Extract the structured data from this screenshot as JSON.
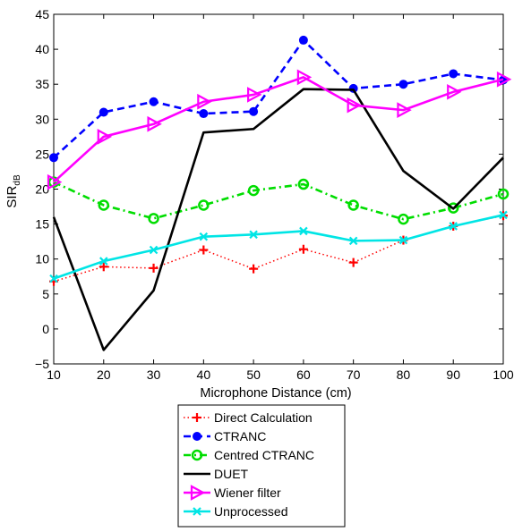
{
  "chart_data": {
    "type": "line",
    "title": "",
    "xlabel": "Microphone Distance (cm)",
    "ylabel": {
      "main": "SIR",
      "sub": "dB"
    },
    "x": [
      10,
      20,
      30,
      40,
      50,
      60,
      70,
      80,
      90,
      100
    ],
    "xlim": [
      10,
      100
    ],
    "ylim": [
      -5,
      45
    ],
    "xticks": [
      "10",
      "20",
      "30",
      "40",
      "50",
      "60",
      "70",
      "80",
      "90",
      "100"
    ],
    "yticks": [
      "−5",
      "0",
      "5",
      "10",
      "15",
      "20",
      "25",
      "30",
      "35",
      "40",
      "45"
    ],
    "grid": false,
    "legend_position": "below plot",
    "series": [
      {
        "name": "Direct Calculation",
        "color": "#ff0000",
        "line_style": "dotted",
        "marker": "plus",
        "values": [
          6.8,
          8.9,
          8.7,
          11.3,
          8.6,
          11.4,
          9.5,
          12.7,
          14.7,
          16.2
        ]
      },
      {
        "name": "CTRANC",
        "color": "#0000ff",
        "line_style": "dashed",
        "marker": "filled-circle",
        "values": [
          24.5,
          31.0,
          32.5,
          30.8,
          31.1,
          41.3,
          34.4,
          35.0,
          36.5,
          35.6
        ]
      },
      {
        "name": "Centred CTRANC",
        "color": "#00dd00",
        "line_style": "dash-dot",
        "marker": "open-circle",
        "values": [
          21.0,
          17.7,
          15.8,
          17.7,
          19.8,
          20.7,
          17.7,
          15.7,
          17.3,
          19.3
        ]
      },
      {
        "name": "DUET",
        "color": "#000000",
        "line_style": "solid",
        "marker": "none",
        "values": [
          16.0,
          -3.0,
          5.5,
          28.1,
          28.6,
          34.3,
          34.2,
          22.6,
          17.2,
          24.5
        ]
      },
      {
        "name": "Wiener filter",
        "color": "#ff00ff",
        "line_style": "solid",
        "marker": "right-triangle",
        "values": [
          21.0,
          27.5,
          29.3,
          32.5,
          33.5,
          36.0,
          32.0,
          31.3,
          33.9,
          35.7
        ]
      },
      {
        "name": "Unprocessed",
        "color": "#00e5e5",
        "line_style": "solid",
        "marker": "x",
        "values": [
          7.2,
          9.7,
          11.3,
          13.2,
          13.5,
          14.0,
          12.6,
          12.7,
          14.7,
          16.3
        ]
      }
    ]
  }
}
